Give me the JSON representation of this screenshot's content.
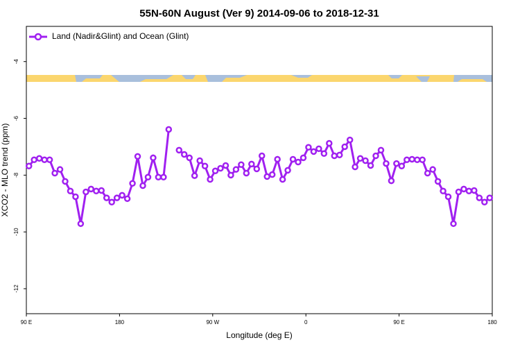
{
  "chart_data": {
    "type": "line",
    "title": "55N-60N August (Ver 9)   2014-09-06 to 2018-12-31",
    "x_label": "Longitude (deg E)",
    "y_label": "XCO2 - MLO trend (ppm)",
    "xlim": [
      90,
      540
    ],
    "ylim": [
      -12.88,
      -2.76
    ],
    "xticks": [
      {
        "value": 90,
        "label": "90 E"
      },
      180,
      {
        "value": 270,
        "label": "90 W"
      },
      {
        "value": 360,
        "label": "0"
      },
      {
        "value": 450,
        "label": "90 E"
      },
      {
        "value": 540,
        "label": "180"
      }
    ],
    "yticks": [
      -4,
      -6,
      -8,
      -10,
      -12
    ],
    "legend": "top-left",
    "x": [
      92.5,
      97.5,
      102.5,
      107.5,
      112.5,
      117.5,
      122.5,
      127.5,
      132.5,
      137.5,
      142.5,
      147.5,
      152.5,
      157.5,
      162.5,
      167.5,
      172.5,
      177.5,
      182.5,
      187.5,
      192.5,
      197.5,
      202.5,
      207.5,
      212.5,
      217.5,
      222.5,
      227.5,
      232.5,
      237.5,
      242.5,
      247.5,
      252.5,
      257.5,
      262.5,
      267.5,
      272.5,
      277.5,
      282.5,
      287.5,
      292.5,
      297.5,
      302.5,
      307.5,
      312.5,
      317.5,
      322.5,
      327.5,
      332.5,
      337.5,
      342.5,
      347.5,
      352.5,
      357.5,
      362.5,
      367.5,
      372.5,
      377.5,
      382.5,
      387.5,
      392.5,
      397.5,
      402.5,
      407.5,
      412.5,
      417.5,
      422.5,
      427.5,
      432.5,
      437.5,
      442.5,
      447.5,
      452.5,
      457.5,
      462.5,
      467.5,
      472.5,
      477.5,
      482.5,
      487.5,
      492.5,
      497.5,
      502.5,
      507.5,
      512.5,
      517.5,
      522.5,
      527.5,
      532.5,
      537.5
    ],
    "series": [
      {
        "name": "Land (Nadir&Glint) and Ocean (Glint)",
        "color": "#a020f0",
        "values": [
          -7.68,
          -7.46,
          -7.41,
          -7.46,
          -7.46,
          -7.93,
          -7.8,
          -8.22,
          -8.56,
          -8.76,
          -9.71,
          -8.59,
          -8.49,
          -8.56,
          -8.54,
          -8.8,
          -8.95,
          -8.8,
          -8.71,
          -8.83,
          -8.29,
          -7.34,
          -8.37,
          -8.07,
          -7.39,
          -8.07,
          -8.07,
          -6.39,
          null,
          -7.12,
          -7.27,
          -7.39,
          -8.02,
          -7.49,
          -7.68,
          -8.15,
          -7.85,
          -7.76,
          -7.66,
          -8.0,
          -7.8,
          -7.63,
          -7.93,
          -7.61,
          -7.78,
          -7.32,
          -8.05,
          -7.98,
          -7.44,
          -8.15,
          -7.83,
          -7.44,
          -7.54,
          -7.39,
          -7.02,
          -7.17,
          -7.07,
          -7.24,
          -6.88,
          -7.32,
          -7.29,
          -7.0,
          -6.76,
          -7.71,
          -7.41,
          -7.49,
          -7.66,
          -7.32,
          -7.12,
          -7.59,
          -8.2,
          -7.59,
          -7.68,
          -7.46,
          -7.44,
          -7.46,
          -7.46,
          -7.93,
          -7.8,
          -8.22,
          -8.56,
          -8.76,
          -9.71,
          -8.59,
          -8.49,
          -8.56,
          -8.54,
          -8.8,
          -8.95,
          -8.8
        ]
      }
    ]
  }
}
